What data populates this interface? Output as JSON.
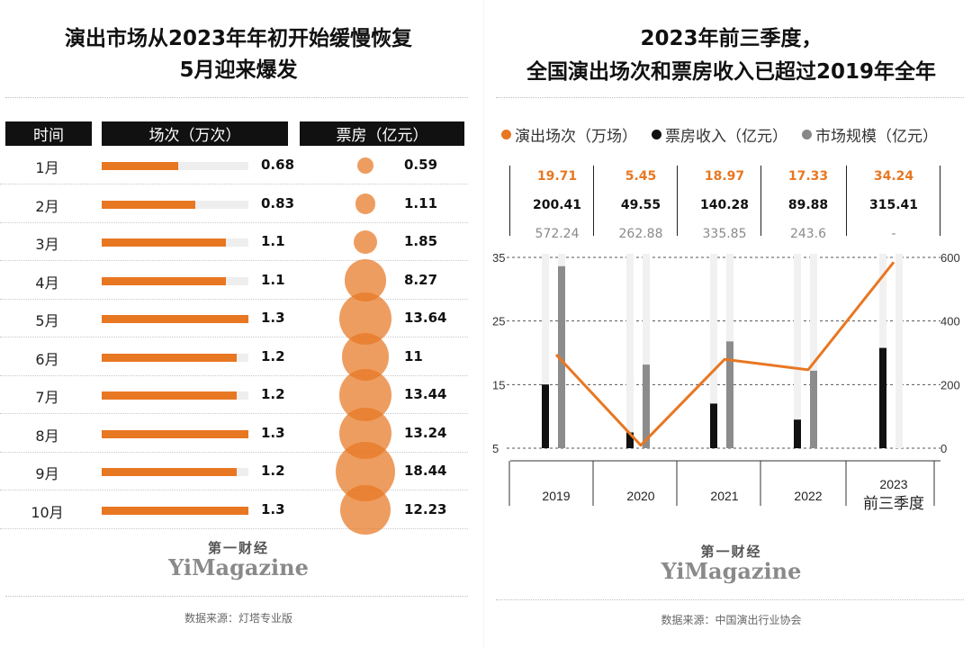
{
  "left": {
    "title_line1": "演出市场从2023年年初开始缓慢恢复",
    "title_line2": "5月迎来爆发",
    "header_time": "时间",
    "header_count": "场次（万次）",
    "header_revenue": "票房（亿元）",
    "logo_cn": "第一财经",
    "logo_en": "YiMagazine",
    "source": "数据来源：灯塔专业版"
  },
  "right": {
    "title_line1": "2023年前三季度，",
    "title_line2": "全国演出场次和票房收入已超过2019年全年",
    "logo_cn": "第一财经",
    "logo_en": "YiMagazine",
    "source": "数据来源：中国演出行业协会"
  },
  "chart_data": [
    {
      "type": "bar",
      "title": "演出市场从2023年年初开始缓慢恢复 5月迎来爆发",
      "categories": [
        "1月",
        "2月",
        "3月",
        "4月",
        "5月",
        "6月",
        "7月",
        "8月",
        "9月",
        "10月"
      ],
      "series": [
        {
          "name": "场次（万次）",
          "values": [
            0.68,
            0.83,
            1.1,
            1.1,
            1.3,
            1.2,
            1.2,
            1.3,
            1.2,
            1.3
          ],
          "display": [
            "0.68",
            "0.83",
            "1.1",
            "1.1",
            "1.3",
            "1.2",
            "1.2",
            "1.3",
            "1.2",
            "1.3"
          ],
          "color": "#e87722",
          "max": 1.3
        },
        {
          "name": "票房（亿元）",
          "values": [
            0.59,
            1.11,
            1.85,
            8.27,
            13.64,
            11,
            13.44,
            13.24,
            18.44,
            12.23
          ],
          "display": [
            "0.59",
            "1.11",
            "1.85",
            "8.27",
            "13.64",
            "11",
            "13.44",
            "13.24",
            "18.44",
            "12.23"
          ],
          "color": "#e87722",
          "max": 18.44
        }
      ],
      "xlabel": "时间",
      "ylabel": ""
    },
    {
      "type": "bar",
      "title": "2023年前三季度，全国演出场次和票房收入已超过2019年全年",
      "categories": [
        "2019",
        "2020",
        "2021",
        "2022",
        "2023 前三季度"
      ],
      "category_labels": [
        [
          "2019"
        ],
        [
          "2020"
        ],
        [
          "2021"
        ],
        [
          "2022"
        ],
        [
          "2023",
          "前三季度"
        ]
      ],
      "legend": [
        "演出场次（万场）",
        "票房收入（亿元）",
        "市场规模（亿元）"
      ],
      "series": [
        {
          "name": "演出场次（万场）",
          "type": "line",
          "values": [
            19.71,
            5.45,
            18.97,
            17.33,
            34.24
          ],
          "display": [
            "19.71",
            "5.45",
            "18.97",
            "17.33",
            "34.24"
          ],
          "color": "#e87722"
        },
        {
          "name": "票房收入（亿元）",
          "type": "bar",
          "values": [
            200.41,
            49.55,
            140.28,
            89.88,
            315.41
          ],
          "display": [
            "200.41",
            "49.55",
            "140.28",
            "89.88",
            "315.41"
          ],
          "color": "#111111"
        },
        {
          "name": "市场规模（亿元）",
          "type": "bar",
          "values": [
            572.24,
            262.88,
            335.85,
            243.6,
            null
          ],
          "display": [
            "572.24",
            "262.88",
            "335.85",
            "243.6",
            "-"
          ],
          "color": "#888888"
        }
      ],
      "y_left_ticks": [
        "35",
        "25",
        "15",
        "5"
      ],
      "y_left_range": [
        5,
        35
      ],
      "y_right_ticks": [
        "600",
        "400",
        "200",
        "0"
      ],
      "y_right_range": [
        0,
        600
      ]
    }
  ]
}
